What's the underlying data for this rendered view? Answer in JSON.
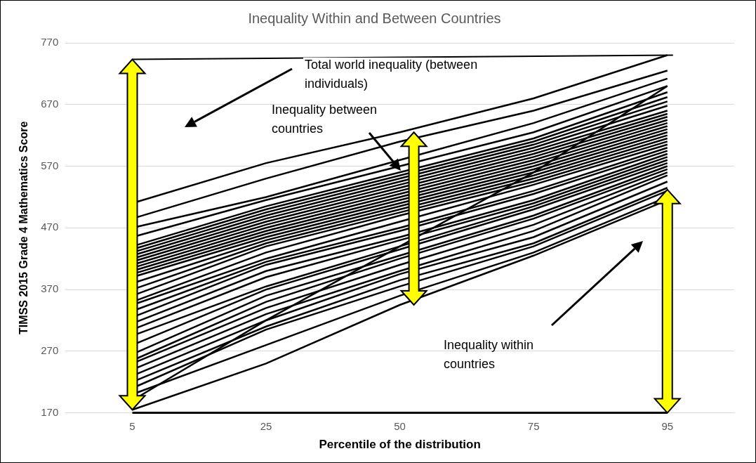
{
  "chart_data": {
    "type": "line",
    "title": "Inequality Within and Between Countries",
    "x_label": "Percentile of the distribution",
    "y_label": "TIMSS 2015 Grade 4 Mathematics Score",
    "categories": [
      "5",
      "25",
      "50",
      "75",
      "95"
    ],
    "ylim": [
      170,
      770
    ],
    "yticks": [
      170,
      270,
      370,
      470,
      570,
      670,
      770
    ],
    "grid": true,
    "color": "#000000",
    "annotations": [
      {
        "text": [
          "Total world inequality (between",
          "individuals)"
        ]
      },
      {
        "text": [
          "Inequality between",
          "countries"
        ]
      },
      {
        "text": [
          "Inequality within",
          "countries"
        ]
      }
    ],
    "series": [
      {
        "values": [
          510,
          575,
          625,
          680,
          750
        ]
      },
      {
        "values": [
          485,
          550,
          610,
          660,
          725
        ]
      },
      {
        "values": [
          470,
          520,
          580,
          640,
          712
        ]
      },
      {
        "values": [
          455,
          515,
          570,
          625,
          700
        ]
      },
      {
        "values": [
          440,
          505,
          560,
          615,
          690
        ]
      },
      {
        "values": [
          435,
          500,
          555,
          610,
          682
        ]
      },
      {
        "values": [
          430,
          495,
          550,
          605,
          675
        ]
      },
      {
        "values": [
          425,
          490,
          545,
          600,
          668
        ]
      },
      {
        "values": [
          420,
          485,
          540,
          595,
          660
        ]
      },
      {
        "values": [
          415,
          480,
          535,
          590,
          655
        ]
      },
      {
        "values": [
          410,
          475,
          530,
          585,
          650
        ]
      },
      {
        "values": [
          405,
          470,
          525,
          580,
          645
        ]
      },
      {
        "values": [
          400,
          465,
          520,
          575,
          640
        ]
      },
      {
        "values": [
          395,
          460,
          515,
          570,
          635
        ]
      },
      {
        "values": [
          390,
          455,
          510,
          565,
          630
        ]
      },
      {
        "values": [
          380,
          450,
          505,
          560,
          625
        ]
      },
      {
        "values": [
          370,
          445,
          500,
          555,
          620
        ]
      },
      {
        "values": [
          360,
          440,
          495,
          550,
          615
        ]
      },
      {
        "values": [
          350,
          430,
          490,
          545,
          610
        ]
      },
      {
        "values": [
          345,
          420,
          480,
          540,
          605
        ]
      },
      {
        "values": [
          335,
          415,
          470,
          530,
          600
        ]
      },
      {
        "values": [
          325,
          410,
          465,
          525,
          595
        ]
      },
      {
        "values": [
          315,
          400,
          455,
          515,
          590
        ]
      },
      {
        "values": [
          305,
          390,
          450,
          510,
          585
        ]
      },
      {
        "values": [
          295,
          375,
          440,
          505,
          580
        ]
      },
      {
        "values": [
          280,
          370,
          435,
          500,
          575
        ]
      },
      {
        "values": [
          265,
          360,
          425,
          490,
          570
        ]
      },
      {
        "values": [
          255,
          350,
          420,
          485,
          565
        ]
      },
      {
        "values": [
          250,
          340,
          410,
          475,
          560
        ]
      },
      {
        "values": [
          240,
          330,
          400,
          465,
          555
        ]
      },
      {
        "values": [
          230,
          320,
          395,
          455,
          545
        ]
      },
      {
        "values": [
          220,
          310,
          385,
          445,
          535
        ]
      },
      {
        "values": [
          210,
          305,
          375,
          440,
          530
        ]
      },
      {
        "values": [
          200,
          280,
          360,
          430,
          520
        ]
      },
      {
        "values": [
          175,
          250,
          345,
          425,
          515
        ]
      },
      {
        "values": [
          190,
          320,
          440,
          560,
          700
        ]
      }
    ]
  }
}
